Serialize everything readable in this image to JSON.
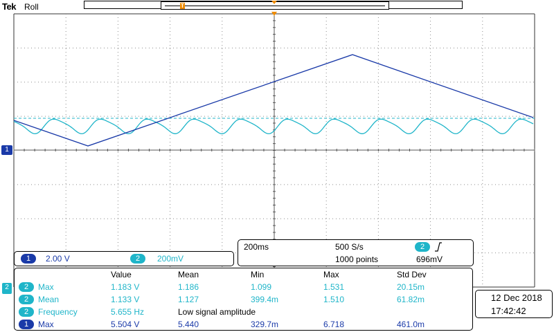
{
  "header": {
    "brand": "Tek",
    "mode": "Roll"
  },
  "colors": {
    "ch1": "#1a3aa8",
    "ch2": "#1fb5c9",
    "trigger": "#f08c00",
    "grid": "#8c8c8c"
  },
  "channel_markers": {
    "ch1": "1",
    "ch2": "2"
  },
  "vertical_scale": {
    "ch1_badge": "1",
    "ch1_value": "2.00 V",
    "ch2_badge": "2",
    "ch2_value": "200mV"
  },
  "timebase": {
    "horizontal": "200ms",
    "sample_rate": "500 S/s",
    "record_length": "1000 points",
    "trigger_channel": "2",
    "trigger_slope_icon": "rising-edge-icon",
    "trigger_level": "696mV"
  },
  "measurements": {
    "headers": [
      "Value",
      "Mean",
      "Min",
      "Max",
      "Std Dev"
    ],
    "rows": [
      {
        "ch": "2",
        "name": "Max",
        "value": "1.183 V",
        "mean": "1.186",
        "min": "1.099",
        "max": "1.531",
        "std": "20.15m"
      },
      {
        "ch": "2",
        "name": "Mean",
        "value": "1.133 V",
        "mean": "1.127",
        "min": "399.4m",
        "max": "1.510",
        "std": "61.82m"
      },
      {
        "ch": "2",
        "name": "Frequency",
        "value": "5.655 Hz",
        "note": "Low signal amplitude"
      },
      {
        "ch": "1",
        "name": "Max",
        "value": "5.504 V",
        "mean": "5.440",
        "min": "329.7m",
        "max": "6.718",
        "std": "461.0m"
      }
    ]
  },
  "datetime": {
    "date": "12 Dec  2018",
    "time": "17:42:42"
  }
}
